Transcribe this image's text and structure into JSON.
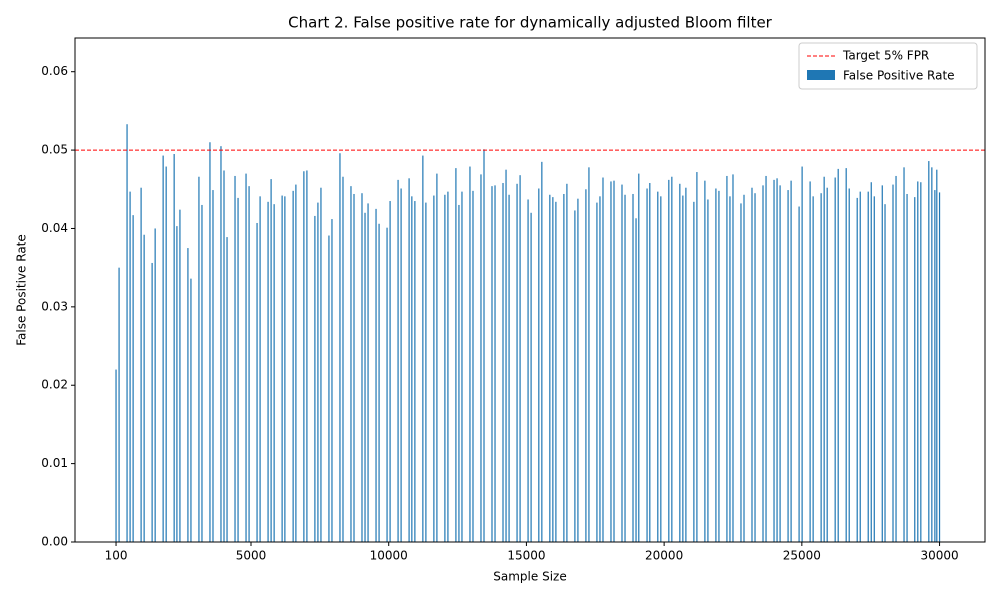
{
  "chart_data": {
    "type": "bar",
    "title": "Chart 2. False positive rate for dynamically adjusted Bloom filter",
    "x_label": "Sample Size",
    "y_label": "False Positive Rate",
    "x": [
      100,
      210,
      500,
      610,
      720,
      1010,
      1120,
      1410,
      1520,
      1810,
      1920,
      2210,
      2310,
      2420,
      2710,
      2820,
      3110,
      3220,
      3510,
      3620,
      3910,
      4020,
      4130,
      4420,
      4530,
      4820,
      4930,
      5220,
      5330,
      5620,
      5730,
      5840,
      6130,
      6230,
      6530,
      6630,
      6920,
      7030,
      7320,
      7430,
      7540,
      7830,
      7940,
      8230,
      8340,
      8630,
      8740,
      9030,
      9140,
      9250,
      9540,
      9650,
      9940,
      10050,
      10340,
      10450,
      10740,
      10840,
      10950,
      11240,
      11350,
      11640,
      11750,
      12040,
      12150,
      12440,
      12550,
      12660,
      12950,
      13060,
      13350,
      13460,
      13750,
      13860,
      14150,
      14260,
      14370,
      14660,
      14770,
      15060,
      15170,
      15450,
      15560,
      15850,
      15960,
      16070,
      16360,
      16470,
      16760,
      16870,
      17160,
      17270,
      17560,
      17670,
      17780,
      18070,
      18180,
      18470,
      18580,
      18870,
      18980,
      19080,
      19380,
      19480,
      19770,
      19880,
      20170,
      20280,
      20570,
      20680,
      20790,
      21080,
      21190,
      21480,
      21590,
      21880,
      21990,
      22280,
      22390,
      22500,
      22790,
      22900,
      23190,
      23300,
      23590,
      23700,
      23990,
      24100,
      24210,
      24500,
      24610,
      24900,
      25010,
      25300,
      25410,
      25700,
      25810,
      25920,
      26210,
      26320,
      26610,
      26720,
      27010,
      27120,
      27410,
      27520,
      27630,
      27920,
      28020,
      28310,
      28420,
      28710,
      28820,
      29100,
      29210,
      29320,
      29610,
      29720,
      29830,
      29900,
      30000
    ],
    "series": [
      {
        "name": "False Positive Rate",
        "color": "#1f77b4",
        "values": [
          0.022,
          0.035,
          0.0533,
          0.0447,
          0.0417,
          0.0452,
          0.0392,
          0.0356,
          0.04,
          0.0493,
          0.0479,
          0.0495,
          0.0403,
          0.0424,
          0.0375,
          0.0336,
          0.0466,
          0.043,
          0.051,
          0.0449,
          0.0505,
          0.0474,
          0.0389,
          0.0467,
          0.0439,
          0.047,
          0.0454,
          0.0407,
          0.0441,
          0.0434,
          0.0463,
          0.0431,
          0.0442,
          0.0441,
          0.0448,
          0.0456,
          0.0473,
          0.0474,
          0.0416,
          0.0433,
          0.0452,
          0.0391,
          0.0412,
          0.0496,
          0.0466,
          0.0454,
          0.0444,
          0.0445,
          0.042,
          0.0432,
          0.0425,
          0.0406,
          0.0401,
          0.0435,
          0.0462,
          0.0451,
          0.0464,
          0.0441,
          0.0435,
          0.0493,
          0.0433,
          0.0442,
          0.047,
          0.0443,
          0.0447,
          0.0477,
          0.043,
          0.0447,
          0.0479,
          0.0448,
          0.0469,
          0.0501,
          0.0454,
          0.0455,
          0.0458,
          0.0475,
          0.0443,
          0.0457,
          0.0468,
          0.0437,
          0.042,
          0.0451,
          0.0485,
          0.0443,
          0.044,
          0.0434,
          0.0444,
          0.0457,
          0.0423,
          0.0438,
          0.045,
          0.0478,
          0.0433,
          0.0441,
          0.0465,
          0.046,
          0.0461,
          0.0456,
          0.0443,
          0.0444,
          0.0413,
          0.047,
          0.0451,
          0.0458,
          0.0447,
          0.0441,
          0.0462,
          0.0466,
          0.0457,
          0.0442,
          0.0452,
          0.0434,
          0.0472,
          0.0461,
          0.0437,
          0.0451,
          0.0448,
          0.0467,
          0.0441,
          0.0469,
          0.0432,
          0.0443,
          0.0452,
          0.0445,
          0.0455,
          0.0467,
          0.0462,
          0.0464,
          0.0455,
          0.0449,
          0.0461,
          0.0428,
          0.0479,
          0.046,
          0.0441,
          0.0445,
          0.0466,
          0.0452,
          0.0465,
          0.0476,
          0.0477,
          0.0451,
          0.0439,
          0.0447,
          0.0447,
          0.0459,
          0.0441,
          0.0455,
          0.0431,
          0.0456,
          0.0467,
          0.0478,
          0.0444,
          0.044,
          0.046,
          0.0459,
          0.0486,
          0.0478,
          0.0449,
          0.0475,
          0.0446
        ]
      }
    ],
    "reference_line": {
      "value": 0.05,
      "label": "Target 5% FPR",
      "color": "#ff0000"
    },
    "xlim": [
      -1390,
      31650
    ],
    "xticks": [
      100,
      5000,
      10000,
      15000,
      20000,
      25000,
      30000
    ],
    "ylim": [
      0,
      0.0643
    ],
    "yticks": [
      {
        "value": 0,
        "label": "0.00"
      },
      {
        "value": 0.01,
        "label": "0.01"
      },
      {
        "value": 0.02,
        "label": "0.02"
      },
      {
        "value": 0.03,
        "label": "0.03"
      },
      {
        "value": 0.04,
        "label": "0.04"
      },
      {
        "value": 0.05,
        "label": "0.05"
      },
      {
        "value": 0.06,
        "label": "0.06"
      }
    ],
    "legend": "upper right"
  }
}
